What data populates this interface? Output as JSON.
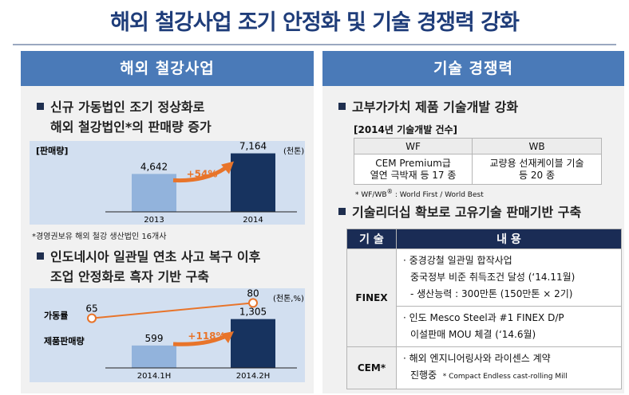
{
  "title": "해외 철강사업 조기 안정화 및 기술 경쟁력 강화",
  "left": {
    "header": "해외 철강사업",
    "bullet1": {
      "line1": "신규 가동법인 조기 정상화로",
      "line2": "해외 철강법인*의 판매량 증가"
    },
    "note1": "*경영권보유 해외 철강 생산법인 16개사",
    "bullet2": {
      "line1": "인도네시아 일관밀 연초 사고 복구 이후",
      "line2": "조업 안정화로 흑자 기반 구축"
    }
  },
  "right": {
    "header": "기술 경쟁력",
    "bullet1": "고부가가치 제품 기술개발 강화",
    "table_caption": "[2014년 기술개발 건수]",
    "table_headers": [
      "WF",
      "WB"
    ],
    "table_cells": {
      "wf_line1": "CEM Premium급",
      "wf_line2": "열연 극박재 등 17 종",
      "wb_line1": "교량용 선재케이블 기술",
      "wb_line2": "등 20 종"
    },
    "table_note_prefix": "* WF/WB",
    "table_note_sup": "®",
    "table_note_rest": " : World First / World Best",
    "bullet2": "기술리더십 확보로 고유기술 판매기반 구축",
    "tech_headers": [
      "기 술",
      "내 용"
    ],
    "finex": {
      "name": "FINEX",
      "item1_line1": "· 중경강철 일관밀 합작사업",
      "item1_line2": "중국정부 비준 취득조건 달성 (‘14.11월)",
      "item1_line3": "- 생산능력 : 300만톤 (150만톤 × 2기)",
      "item2_line1": "· 인도 Mesco Steel과 #1 FINEX D/P",
      "item2_line2": "이설판매 MOU 체결 (‘14.6월)"
    },
    "cem": {
      "name": "CEM*",
      "line1": "· 해외 엔지니어링사와 라이센스 계약",
      "line2": "진행중",
      "footnote": "* Compact Endless cast-rolling Mill"
    }
  },
  "chart_data": [
    {
      "type": "bar",
      "title": "판매량",
      "unit": "(천톤)",
      "categories": [
        "2013",
        "2014"
      ],
      "values": [
        4642,
        7164
      ],
      "value_labels": [
        "4,642",
        "7,164"
      ],
      "growth_label": "+54%",
      "colors": {
        "bar_prev": "#92b3dc",
        "bar_curr": "#17335f",
        "arrow": "#e8742a"
      }
    },
    {
      "type": "bar+line",
      "unit": "(천톤,%)",
      "categories": [
        "2014.1H",
        "2014.2H"
      ],
      "series": [
        {
          "name": "가동률",
          "type": "line",
          "values": [
            65,
            80
          ],
          "value_labels": [
            "65",
            "80"
          ]
        },
        {
          "name": "제품판매량",
          "type": "bar",
          "values": [
            599,
            1305
          ],
          "value_labels": [
            "599",
            "1,305"
          ]
        }
      ],
      "growth_label": "+118%",
      "colors": {
        "bar_prev": "#92b3dc",
        "bar_curr": "#17335f",
        "line": "#e8742a"
      }
    }
  ]
}
